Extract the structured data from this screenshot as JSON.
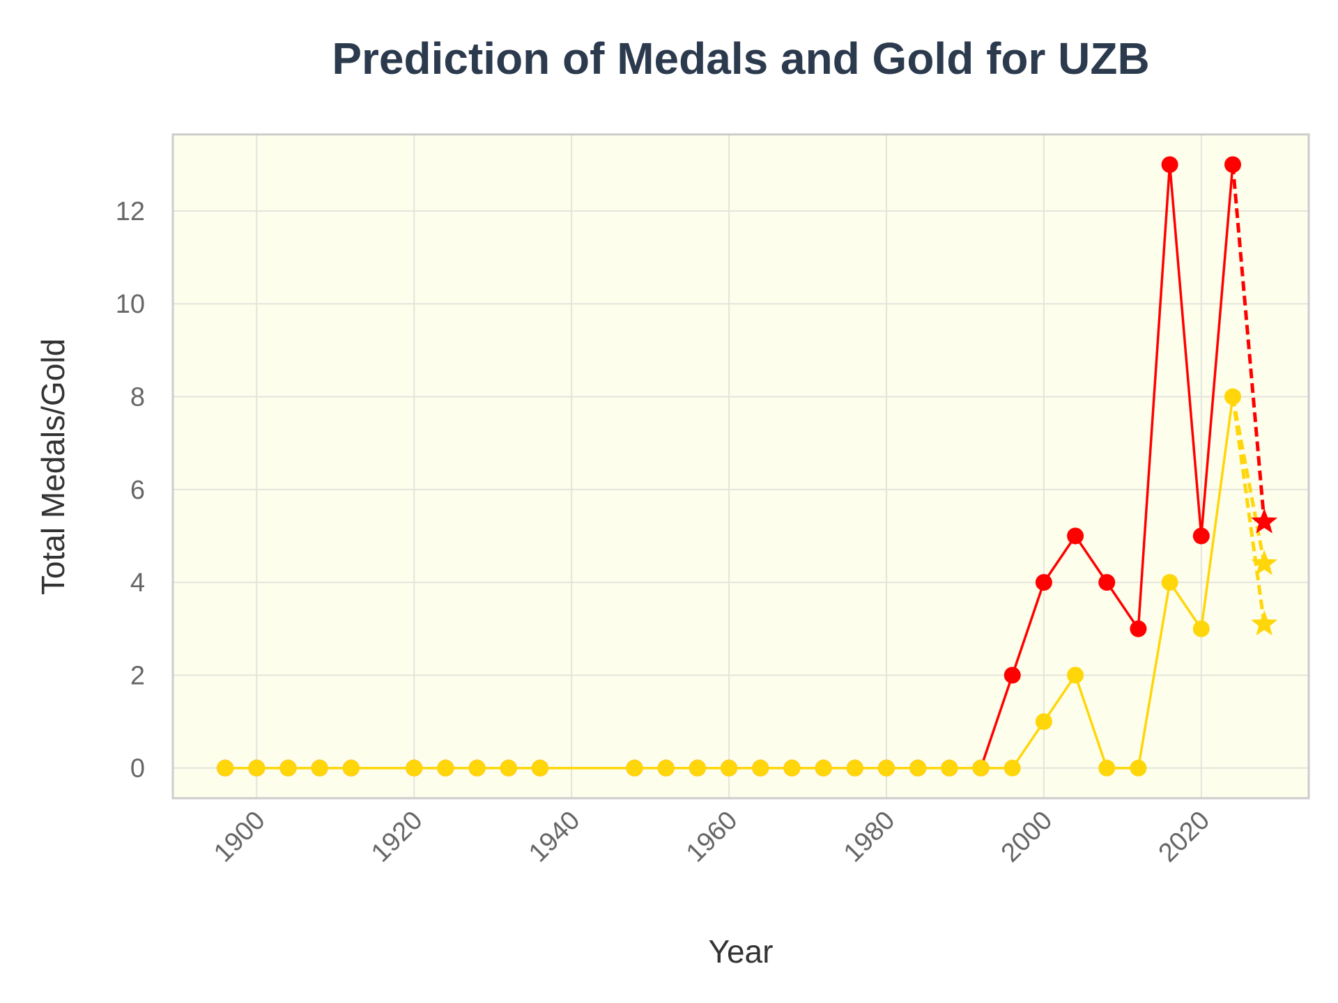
{
  "chart_data": {
    "type": "line",
    "title": "Prediction of Medals and Gold for UZB",
    "xlabel": "Year",
    "ylabel": "Total Medals/Gold",
    "xlim": [
      1889.35,
      2033.65
    ],
    "ylim": [
      -0.65,
      13.65
    ],
    "xticks": [
      1900,
      1920,
      1940,
      1960,
      1980,
      2000,
      2020
    ],
    "yticks": [
      0,
      2,
      4,
      6,
      8,
      10,
      12
    ],
    "grid": true,
    "legend": "none",
    "colors": {
      "background": "#fefeec",
      "grid": "#e4e4dc",
      "frame": "#cccccc",
      "total": "#ff0000",
      "gold": "#ffd60a"
    },
    "series": [
      {
        "color": "#ff0000",
        "x": [
          1896,
          1900,
          1904,
          1908,
          1912,
          1920,
          1924,
          1928,
          1932,
          1936,
          1948,
          1952,
          1956,
          1960,
          1964,
          1968,
          1972,
          1976,
          1980,
          1984,
          1988,
          1992,
          1996,
          2000,
          2004,
          2008,
          2012,
          2016,
          2020,
          2024
        ],
        "y": [
          0,
          0,
          0,
          0,
          0,
          0,
          0,
          0,
          0,
          0,
          0,
          0,
          0,
          0,
          0,
          0,
          0,
          0,
          0,
          0,
          0,
          0,
          2,
          4,
          5,
          4,
          3,
          13,
          5,
          13
        ]
      },
      {
        "color": "#ffd60a",
        "x": [
          1896,
          1900,
          1904,
          1908,
          1912,
          1920,
          1924,
          1928,
          1932,
          1936,
          1948,
          1952,
          1956,
          1960,
          1964,
          1968,
          1972,
          1976,
          1980,
          1984,
          1988,
          1992,
          1996,
          2000,
          2004,
          2008,
          2012,
          2016,
          2020,
          2024
        ],
        "y": [
          0,
          0,
          0,
          0,
          0,
          0,
          0,
          0,
          0,
          0,
          0,
          0,
          0,
          0,
          0,
          0,
          0,
          0,
          0,
          0,
          0,
          0,
          0,
          1,
          2,
          0,
          0,
          4,
          3,
          8
        ]
      }
    ],
    "predictions": [
      {
        "color": "#ff0000",
        "from": [
          2024,
          13
        ],
        "to": [
          2028,
          5.3
        ]
      },
      {
        "color": "#ffd60a",
        "from": [
          2024,
          8
        ],
        "to": [
          2028,
          4.4
        ]
      },
      {
        "color": "#ffd60a",
        "from": [
          2024,
          8
        ],
        "to": [
          2028,
          3.1
        ]
      }
    ]
  }
}
